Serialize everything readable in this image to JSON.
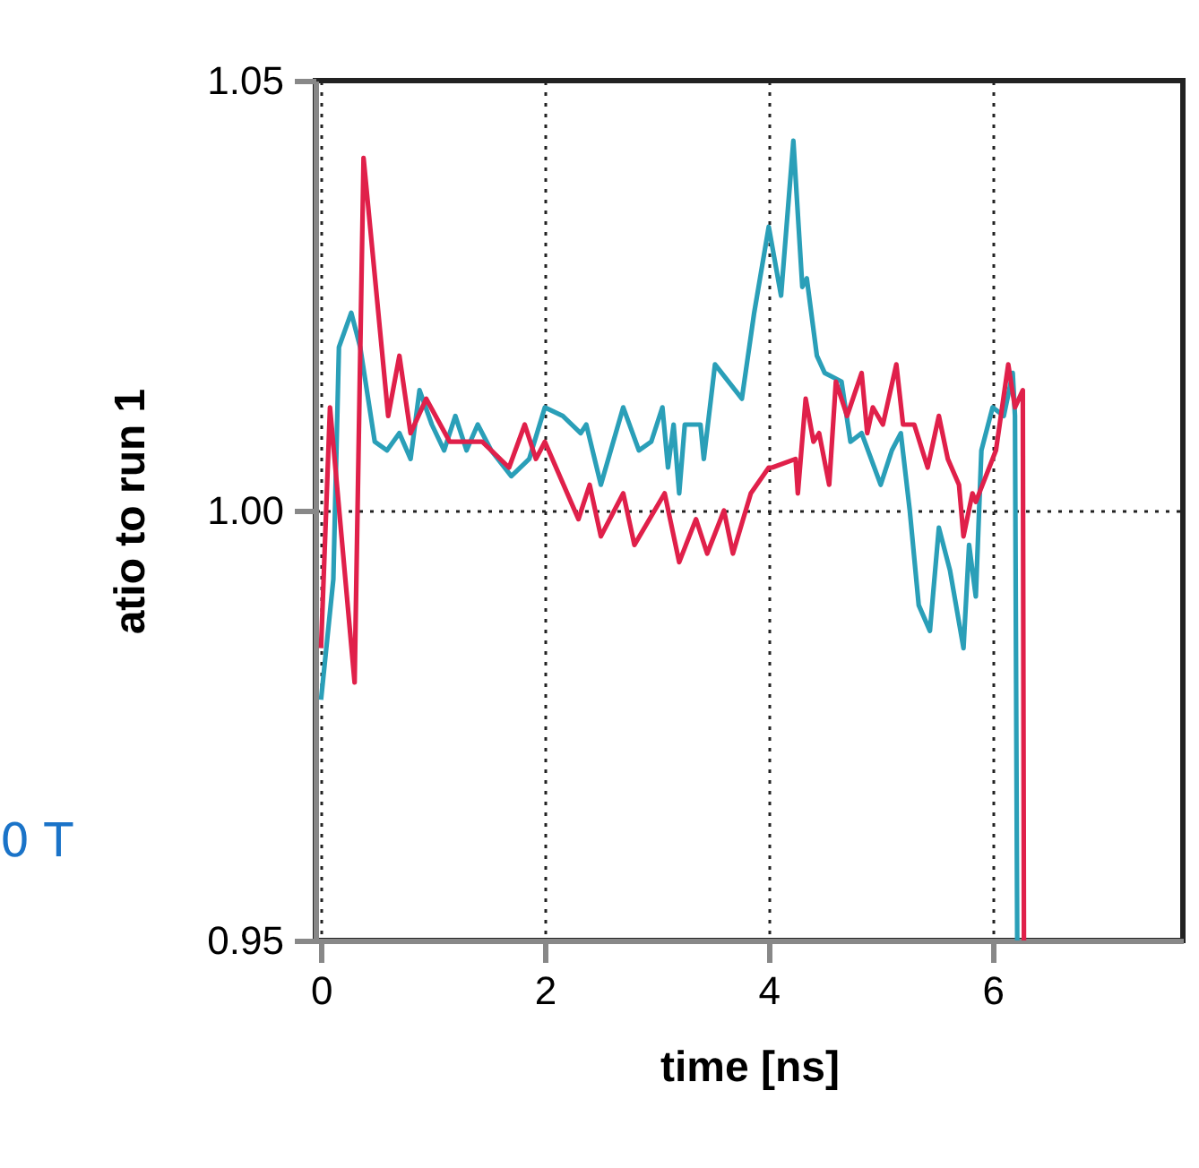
{
  "chart_data": {
    "type": "line",
    "xlabel": "time  [ns]",
    "ylabel": "atio to run 1",
    "xlim": [
      -0.05,
      7.7
    ],
    "xticks": [
      0,
      2,
      4,
      6
    ],
    "ylim": [
      0.95,
      1.05
    ],
    "yticks": [
      {
        "value": 0.95,
        "label": "0.95"
      },
      {
        "value": 1.0,
        "label": "1.00"
      },
      {
        "value": 1.05,
        "label": "1.05"
      }
    ],
    "grid": true,
    "line_style": "solid",
    "marker": "none",
    "annotations": [
      "0 T"
    ],
    "series": [
      {
        "color": "#2a9fb8",
        "x": [
          0,
          0.11,
          0.16,
          0.27,
          0.35,
          0.48,
          0.59,
          0.7,
          0.8,
          0.88,
          0.99,
          1.1,
          1.2,
          1.3,
          1.4,
          1.52,
          1.7,
          1.86,
          2.0,
          2.16,
          2.32,
          2.37,
          2.5,
          2.7,
          2.84,
          2.95,
          3.05,
          3.1,
          3.15,
          3.2,
          3.25,
          3.39,
          3.42,
          3.52,
          3.76,
          3.87,
          4.0,
          4.11,
          4.22,
          4.3,
          4.34,
          4.43,
          4.5,
          4.65,
          4.73,
          4.83,
          5.0,
          5.1,
          5.18,
          5.26,
          5.34,
          5.44,
          5.52,
          5.62,
          5.74,
          5.79,
          5.85,
          5.9,
          6.0,
          6.1,
          6.18,
          6.2,
          6.22
        ],
        "values": [
          0.978,
          0.992,
          1.019,
          1.023,
          1.019,
          1.008,
          1.007,
          1.009,
          1.006,
          1.014,
          1.01,
          1.007,
          1.011,
          1.007,
          1.01,
          1.007,
          1.004,
          1.006,
          1.012,
          1.011,
          1.009,
          1.01,
          1.003,
          1.012,
          1.007,
          1.008,
          1.012,
          1.005,
          1.01,
          1.002,
          1.01,
          1.01,
          1.006,
          1.017,
          1.013,
          1.023,
          1.033,
          1.025,
          1.043,
          1.026,
          1.027,
          1.018,
          1.016,
          1.015,
          1.008,
          1.009,
          1.003,
          1.007,
          1.009,
          1.0,
          0.989,
          0.986,
          0.998,
          0.993,
          0.984,
          0.996,
          0.99,
          1.007,
          1.012,
          1.011,
          1.016,
          1.011,
          0.95
        ]
      },
      {
        "color": "#e0204a",
        "x": [
          0,
          0.08,
          0.3,
          0.38,
          0.6,
          0.7,
          0.8,
          0.94,
          1.15,
          1.44,
          1.68,
          1.82,
          1.92,
          2.0,
          2.3,
          2.4,
          2.5,
          2.7,
          2.8,
          3.07,
          3.2,
          3.35,
          3.45,
          3.6,
          3.68,
          3.84,
          4.0,
          4.03,
          4.24,
          4.26,
          4.33,
          4.4,
          4.45,
          4.54,
          4.6,
          4.7,
          4.83,
          4.88,
          4.93,
          5.02,
          5.14,
          5.2,
          5.3,
          5.42,
          5.52,
          5.6,
          5.7,
          5.74,
          5.82,
          5.85,
          6.03,
          6.14,
          6.2,
          6.27,
          6.28
        ],
        "values": [
          0.984,
          1.012,
          0.98,
          1.041,
          1.011,
          1.018,
          1.009,
          1.013,
          1.008,
          1.008,
          1.005,
          1.01,
          1.006,
          1.008,
          0.999,
          1.003,
          0.997,
          1.002,
          0.996,
          1.002,
          0.994,
          0.999,
          0.995,
          1.0,
          0.995,
          1.002,
          1.005,
          1.005,
          1.006,
          1.002,
          1.013,
          1.008,
          1.009,
          1.003,
          1.015,
          1.011,
          1.016,
          1.009,
          1.012,
          1.01,
          1.017,
          1.01,
          1.01,
          1.005,
          1.011,
          1.006,
          1.003,
          0.997,
          1.002,
          1.001,
          1.007,
          1.017,
          1.012,
          1.014,
          0.95
        ]
      }
    ]
  }
}
